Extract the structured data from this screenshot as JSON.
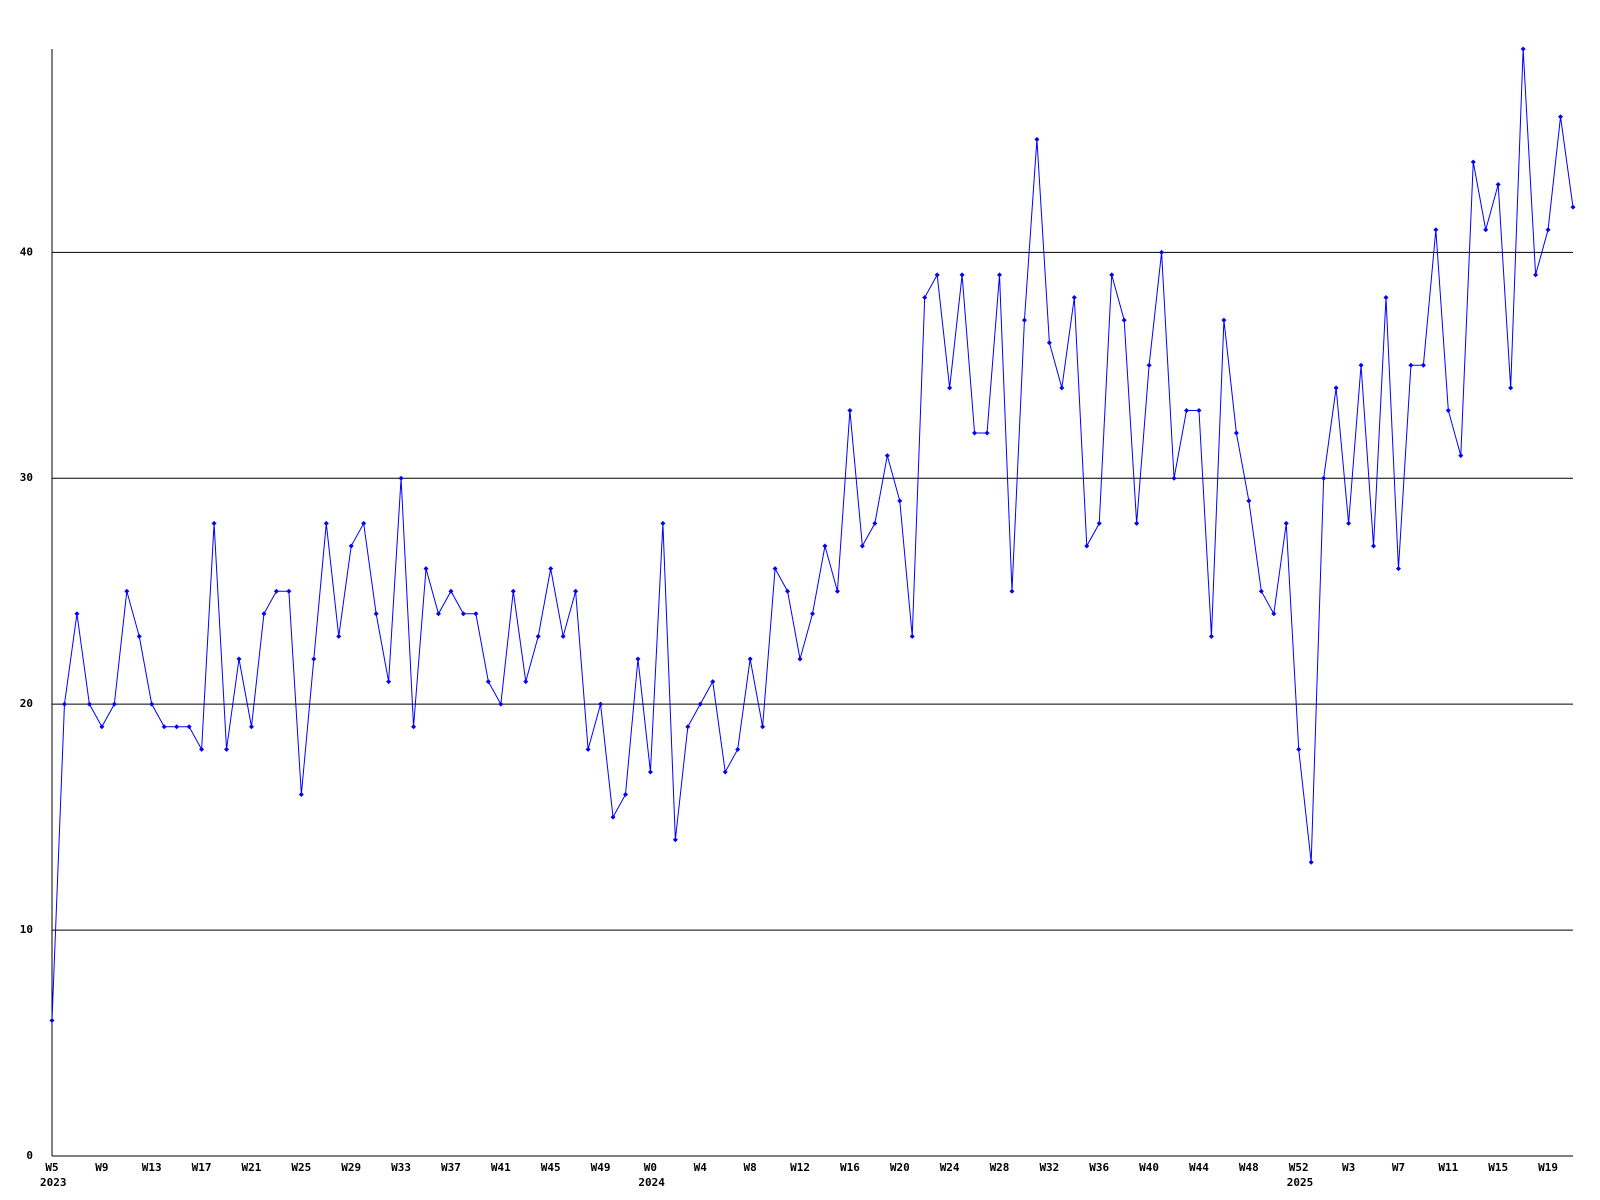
{
  "chart_data": {
    "type": "line",
    "categories": [
      "W5",
      null,
      null,
      null,
      "W9",
      null,
      null,
      null,
      "W13",
      null,
      null,
      null,
      "W17",
      null,
      null,
      null,
      "W21",
      null,
      null,
      null,
      "W25",
      null,
      null,
      null,
      "W29",
      null,
      null,
      null,
      "W33",
      null,
      null,
      null,
      "W37",
      null,
      null,
      null,
      "W41",
      null,
      null,
      null,
      "W45",
      null,
      null,
      null,
      "W49",
      null,
      null,
      null,
      "W0",
      null,
      null,
      null,
      "W4",
      null,
      null,
      null,
      "W8",
      null,
      null,
      null,
      "W12",
      null,
      null,
      null,
      "W16",
      null,
      null,
      null,
      "W20",
      null,
      null,
      null,
      "W24",
      null,
      null,
      null,
      "W28",
      null,
      null,
      null,
      "W32",
      null,
      null,
      null,
      "W36",
      null,
      null,
      null,
      "W40",
      null,
      null,
      null,
      "W44",
      null,
      null,
      null,
      "W48",
      null,
      null,
      null,
      "W52",
      null,
      null,
      null,
      "W3",
      null,
      null,
      null,
      "W7",
      null,
      null,
      null,
      "W11",
      null,
      null,
      null,
      "W15",
      null,
      null,
      null,
      "W19",
      null,
      null
    ],
    "category_years": [
      "2023",
      null,
      null,
      null,
      null,
      null,
      null,
      null,
      null,
      null,
      null,
      null,
      null,
      null,
      null,
      null,
      null,
      null,
      null,
      null,
      null,
      null,
      null,
      null,
      null,
      null,
      null,
      null,
      null,
      null,
      null,
      null,
      null,
      null,
      null,
      null,
      null,
      null,
      null,
      null,
      null,
      null,
      null,
      null,
      null,
      null,
      null,
      null,
      "2024",
      null,
      null,
      null,
      null,
      null,
      null,
      null,
      null,
      null,
      null,
      null,
      null,
      null,
      null,
      null,
      null,
      null,
      null,
      null,
      null,
      null,
      null,
      null,
      null,
      null,
      null,
      null,
      null,
      null,
      null,
      null,
      null,
      null,
      null,
      null,
      null,
      null,
      null,
      null,
      null,
      null,
      null,
      null,
      null,
      null,
      null,
      null,
      null,
      null,
      null,
      null,
      "2025",
      null,
      null,
      null,
      null,
      null,
      null,
      null,
      null,
      null,
      null,
      null,
      null,
      null,
      null,
      null,
      null,
      null,
      null,
      null,
      null,
      null
    ],
    "series": [
      {
        "color": "#0000ff",
        "values": [
          6,
          20,
          24,
          20,
          19,
          20,
          25,
          23,
          20,
          19,
          19,
          19,
          18,
          28,
          18,
          22,
          19,
          24,
          25,
          25,
          16,
          22,
          28,
          23,
          27,
          28,
          24,
          21,
          30,
          19,
          26,
          24,
          25,
          24,
          24,
          21,
          20,
          25,
          21,
          23,
          26,
          23,
          25,
          18,
          20,
          15,
          16,
          22,
          17,
          28,
          14,
          19,
          20,
          21,
          17,
          18,
          22,
          19,
          26,
          25,
          22,
          24,
          27,
          25,
          33,
          27,
          28,
          31,
          29,
          23,
          38,
          39,
          34,
          39,
          32,
          32,
          39,
          25,
          37,
          45,
          36,
          34,
          38,
          27,
          28,
          39,
          37,
          28,
          35,
          40,
          30,
          33,
          33,
          23,
          37,
          32,
          29,
          25,
          24,
          28,
          18,
          13,
          30,
          34,
          28,
          35,
          27,
          38,
          26,
          35,
          35,
          41,
          33,
          31,
          44,
          41,
          43,
          34,
          49,
          39,
          41,
          46,
          42
        ]
      }
    ],
    "ylim": [
      0,
      49
    ],
    "yticks": [
      0,
      10,
      20,
      30,
      40
    ],
    "grid": true
  }
}
